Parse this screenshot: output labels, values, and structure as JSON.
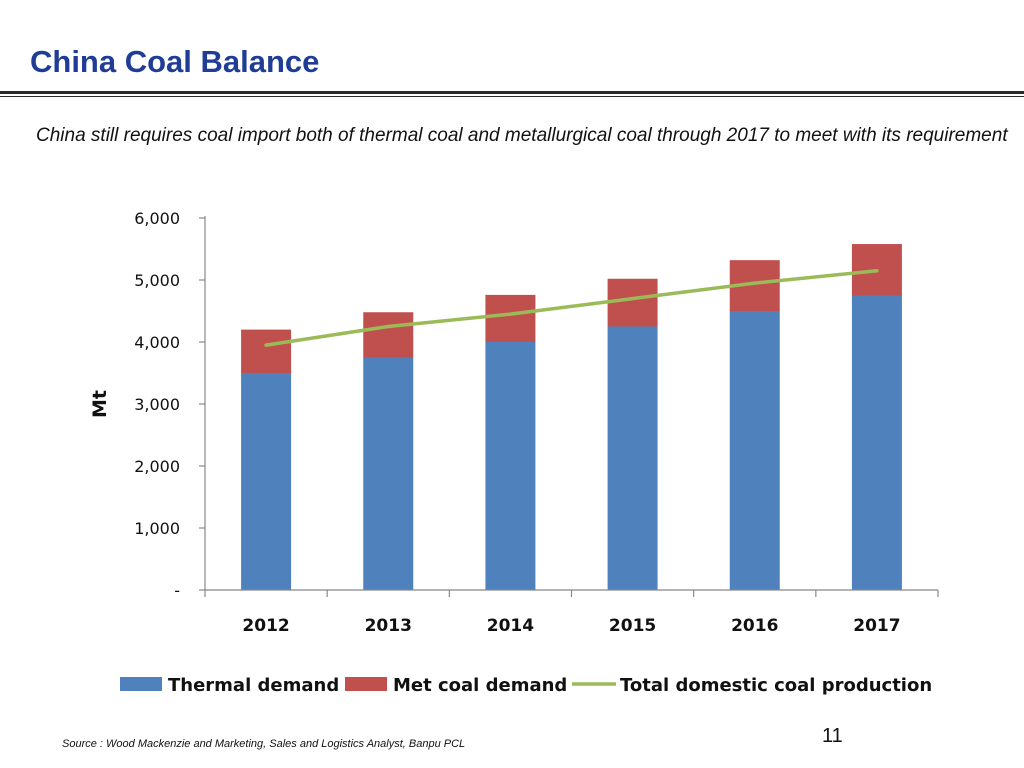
{
  "slide": {
    "title": "China Coal Balance",
    "subtitle": "China still requires coal import both of thermal coal and metallurgical coal through 2017 to meet with its requirement",
    "source": "Source : Wood Mackenzie and Marketing, Sales and Logistics Analyst, Banpu PCL",
    "page_number": "11"
  },
  "chart_data": {
    "type": "bar",
    "stacked": true,
    "categories": [
      "2012",
      "2013",
      "2014",
      "2015",
      "2016",
      "2017"
    ],
    "series": [
      {
        "name": "Thermal demand",
        "type": "bar",
        "color": "#4f81bd",
        "values": [
          3500,
          3750,
          4000,
          4250,
          4500,
          4750
        ]
      },
      {
        "name": "Met coal demand",
        "type": "bar",
        "color": "#c0504d",
        "values": [
          700,
          730,
          760,
          770,
          820,
          830
        ]
      },
      {
        "name": "Total domestic coal production",
        "type": "line",
        "color": "#9bbb59",
        "values": [
          3950,
          4250,
          4450,
          4700,
          4950,
          5150
        ]
      }
    ],
    "ylabel": "Mt",
    "ylim": [
      0,
      6000
    ],
    "yticks": [
      0,
      1000,
      2000,
      3000,
      4000,
      5000,
      6000
    ],
    "ytick_labels": [
      "-",
      "1,000",
      "2,000",
      "3,000",
      "4,000",
      "5,000",
      "6,000"
    ],
    "grid": false,
    "legend_position": "bottom"
  }
}
